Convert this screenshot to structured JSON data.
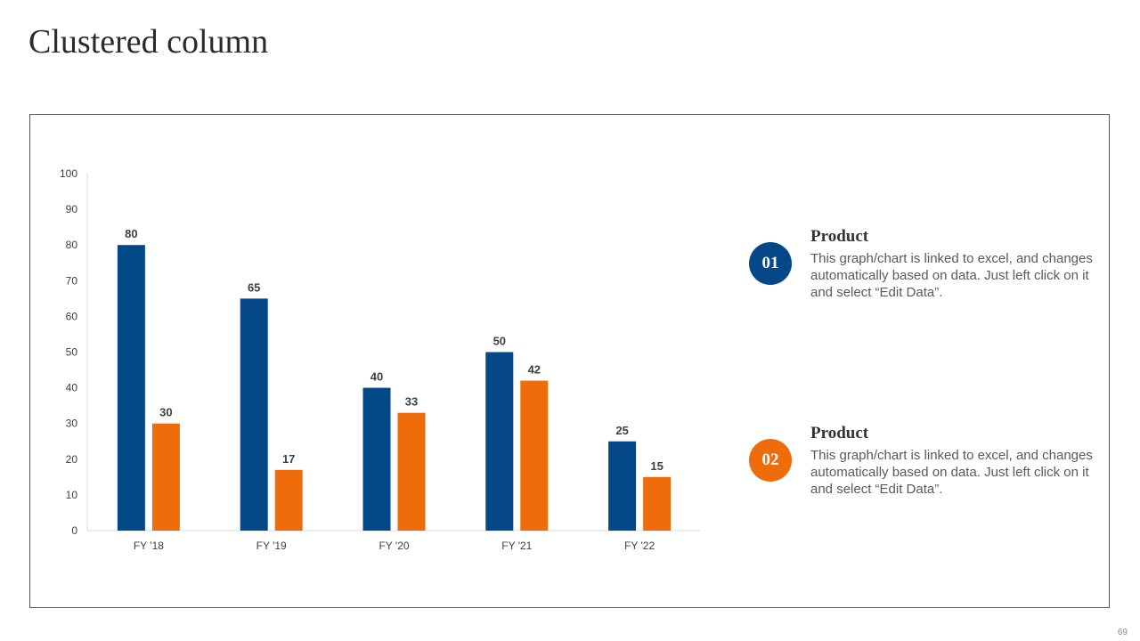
{
  "slide": {
    "title": "Clustered column",
    "page_number": "69"
  },
  "colors": {
    "series1": "#054888",
    "series2": "#EE6C0A",
    "axis": "#D9D9D9"
  },
  "chart_data": {
    "type": "bar",
    "title": "",
    "xlabel": "",
    "ylabel": "",
    "categories": [
      "FY '18",
      "FY '19",
      "FY '20",
      "FY '21",
      "FY '22"
    ],
    "series": [
      {
        "name": "Product 01",
        "values": [
          80,
          65,
          40,
          50,
          25
        ]
      },
      {
        "name": "Product 02",
        "values": [
          30,
          17,
          33,
          42,
          15
        ]
      }
    ],
    "ylim": [
      0,
      100
    ],
    "yticks": [
      0,
      10,
      20,
      30,
      40,
      50,
      60,
      70,
      80,
      90,
      100
    ],
    "grid": false,
    "data_labels": true,
    "legend": "right"
  },
  "legend": [
    {
      "badge": "01",
      "title": "Product",
      "text": "This graph/chart is linked to excel, and changes automatically based on data. Just left click on it and select “Edit Data”."
    },
    {
      "badge": "02",
      "title": "Product",
      "text": "This graph/chart is linked to excel, and changes automatically based on data. Just left click on it and select “Edit Data”."
    }
  ]
}
